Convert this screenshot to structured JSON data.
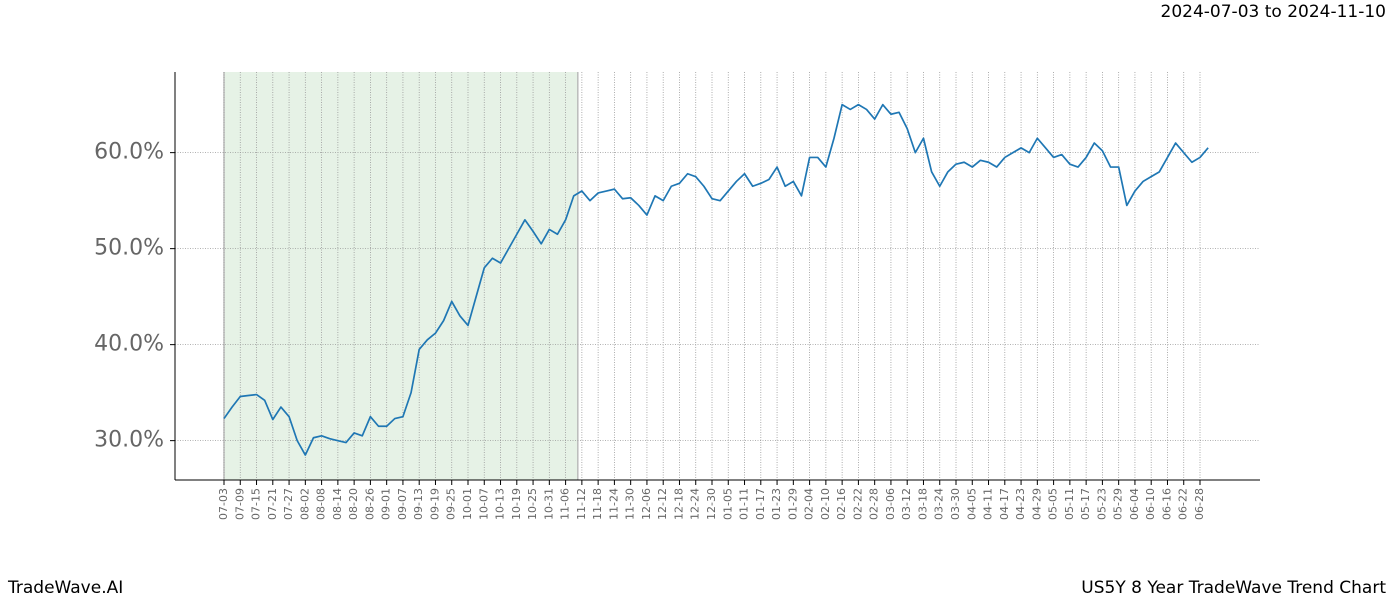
{
  "chart_data": {
    "type": "line",
    "subtitle": "2024-07-03 to 2024-11-10",
    "source": "TradeWave.AI",
    "title": "US5Y 8 Year TradeWave Trend Chart",
    "categories": [
      "07-03",
      null,
      "07-09",
      null,
      "07-15",
      null,
      "07-21",
      null,
      "07-27",
      null,
      "08-02",
      null,
      "08-08",
      null,
      "08-14",
      null,
      "08-20",
      null,
      "08-26",
      null,
      "09-01",
      null,
      "09-07",
      null,
      "09-13",
      null,
      "09-19",
      null,
      "09-25",
      null,
      "10-01",
      null,
      "10-07",
      null,
      "10-13",
      null,
      "10-19",
      null,
      "10-25",
      null,
      "10-31",
      null,
      "11-06",
      null,
      "11-12",
      null,
      "11-18",
      null,
      "11-24",
      null,
      "11-30",
      null,
      "12-06",
      null,
      "12-12",
      null,
      "12-18",
      null,
      "12-24",
      null,
      "12-30",
      null,
      "01-05",
      null,
      "01-11",
      null,
      "01-17",
      null,
      "01-23",
      null,
      "01-29",
      null,
      "02-04",
      null,
      "02-10",
      null,
      "02-16",
      null,
      "02-22",
      null,
      "02-28",
      null,
      "03-06",
      null,
      "03-12",
      null,
      "03-18",
      null,
      "03-24",
      null,
      "03-30",
      null,
      "04-05",
      null,
      "04-11",
      null,
      "04-17",
      null,
      "04-23",
      null,
      "04-29",
      null,
      "05-05",
      null,
      "05-11",
      null,
      "05-17",
      null,
      "05-23",
      null,
      "05-29",
      null,
      "06-04",
      null,
      "06-10",
      null,
      "06-16",
      null,
      "06-22",
      null,
      "06-28",
      null
    ],
    "series": [
      {
        "color": "#1f77b4",
        "values": [
          32.3,
          33.5,
          34.6,
          34.7,
          34.8,
          34.2,
          32.2,
          33.5,
          32.5,
          30.0,
          28.5,
          30.3,
          30.5,
          30.2,
          30.0,
          29.8,
          30.8,
          30.5,
          32.5,
          31.5,
          31.5,
          32.3,
          32.5,
          35.0,
          39.5,
          40.5,
          41.2,
          42.5,
          44.5,
          43.0,
          42.0,
          45.0,
          48.0,
          49.0,
          48.5,
          50.0,
          51.5,
          53.0,
          51.8,
          50.5,
          52.0,
          51.5,
          53.0,
          55.5,
          56.0,
          55.0,
          55.8,
          56.0,
          56.2,
          55.2,
          55.3,
          54.5,
          53.5,
          55.5,
          55.0,
          56.5,
          56.8,
          57.8,
          57.5,
          56.5,
          55.2,
          55.0,
          56.0,
          57.0,
          57.8,
          56.5,
          56.8,
          57.2,
          58.5,
          56.5,
          57.0,
          55.5,
          59.5,
          59.5,
          58.5,
          61.5,
          65.0,
          64.5,
          65.0,
          64.5,
          63.5,
          65.0,
          64.0,
          64.2,
          62.5,
          60.0,
          61.5,
          58.0,
          56.5,
          58.0,
          58.8,
          59.0,
          58.5,
          59.2,
          59.0,
          58.5,
          59.5,
          60.0,
          60.5,
          60.0,
          61.5,
          60.5,
          59.5,
          59.8,
          58.8,
          58.5,
          59.5,
          61.0,
          60.2,
          58.5,
          58.5,
          54.5,
          56.0,
          57.0,
          57.5,
          58.0,
          59.5,
          61.0,
          60.0,
          59.0,
          59.5,
          60.5
        ]
      }
    ],
    "ylim": [
      25.9,
      68.4
    ],
    "yticks": [
      {
        "value": 30,
        "label": "30.0%"
      },
      {
        "value": 40,
        "label": "40.0%"
      },
      {
        "value": 50,
        "label": "50.0%"
      },
      {
        "value": 60,
        "label": "60.0%"
      }
    ],
    "grid": true,
    "shaded_span": [
      0,
      43.5
    ],
    "shade_color": "#e6f2e6"
  }
}
